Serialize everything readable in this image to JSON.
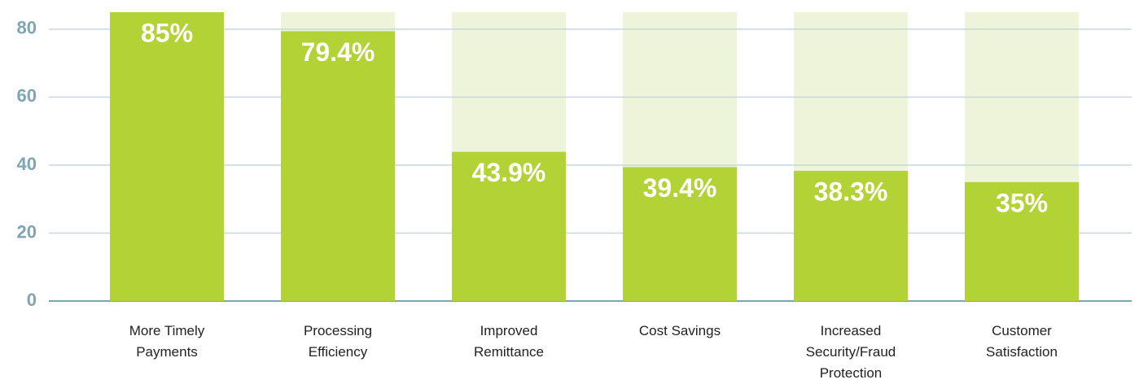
{
  "chart_data": {
    "type": "bar",
    "categories": [
      "More Timely Payments",
      "Processing Efficiency",
      "Improved Remittance",
      "Cost Savings",
      "Increased Security/Fraud Protection",
      "Customer Satisfaction"
    ],
    "values": [
      85,
      79.4,
      43.9,
      39.4,
      38.3,
      35
    ],
    "value_labels": [
      "85%",
      "79.4%",
      "43.9%",
      "39.4%",
      "38.3%",
      "35%"
    ],
    "color": "#b2d235",
    "track_color": "#eef4d9",
    "ylim": [
      0,
      85
    ],
    "yticks": [
      0,
      20,
      40,
      60,
      80
    ],
    "grid": true
  }
}
